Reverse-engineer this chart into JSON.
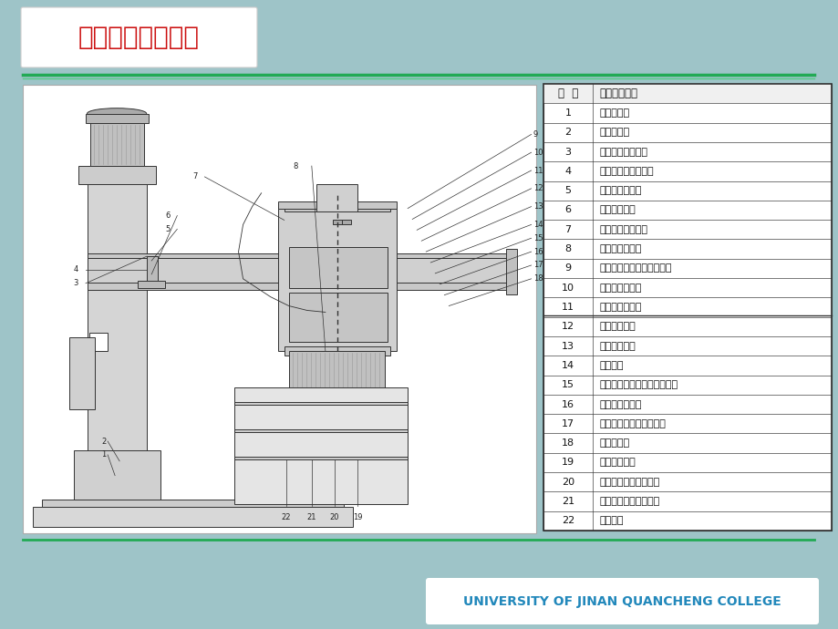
{
  "bg_color": "#9ec4c8",
  "title_logo_text": "济南大学泉城学院",
  "footer_text": "UNIVERSITY OF JINAN QUANCHENG COLLEGE",
  "footer_text_color": "#2288bb",
  "header_line_color1": "#22aa55",
  "header_line_color2": "#55cc88",
  "table_header": [
    "部  位",
    "操纵手柄名称"
  ],
  "table_data": [
    [
      "1",
      "冷却泵开关"
    ],
    [
      "2",
      "总电源开关"
    ],
    [
      "3",
      "主轴转速预选旋扭"
    ],
    [
      "4",
      "主轴进给量预选旋扭"
    ],
    [
      "5",
      "主轴箱移动手轮"
    ],
    [
      "6",
      "主轴移动手柄"
    ],
    [
      "7",
      "定程切削限位手柄"
    ],
    [
      "8",
      "刻度盘微调手把"
    ],
    [
      "9",
      "主轴箱、立柱夹紧选择开关"
    ],
    [
      "10",
      "主电机启动按钮"
    ],
    [
      "11",
      "主电机停止按钮"
    ],
    [
      "12",
      "摇臂上升按钮"
    ],
    [
      "13",
      "摇臂下降按钮"
    ],
    [
      "14",
      "总停按钮"
    ],
    [
      "15",
      "主轴正反转、变速、空挡手柄"
    ],
    [
      "16",
      "主轴平衡调整轴"
    ],
    [
      "17",
      "接通、断开机动进给手柄"
    ],
    [
      "18",
      "照明灯开关"
    ],
    [
      "19",
      "微动进给手轮"
    ],
    [
      "20",
      "主轴箱、立柱松开按钮"
    ],
    [
      "21",
      "主轴箱、立柱夹紧按钮"
    ],
    [
      "22",
      "冷却开关"
    ]
  ]
}
